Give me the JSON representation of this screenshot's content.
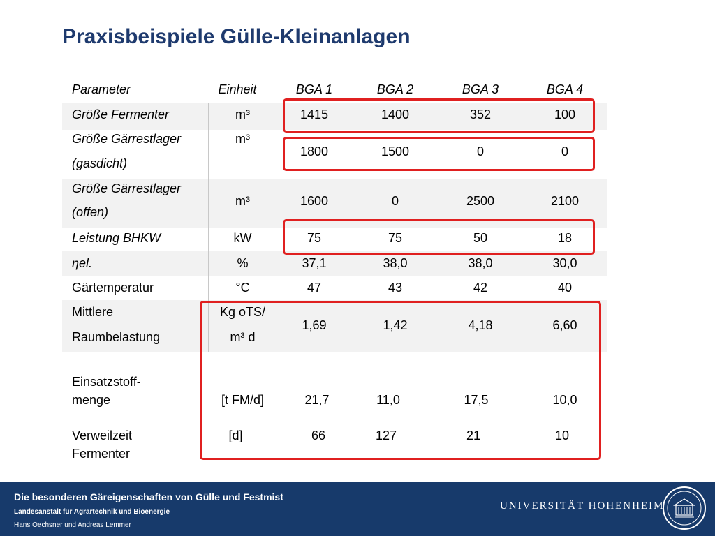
{
  "title": "Praxisbeispiele Gülle-Kleinanlagen",
  "header": {
    "parameter": "Parameter",
    "unit": "Einheit",
    "bga1": "BGA 1",
    "bga2": "BGA 2",
    "bga3": "BGA 3",
    "bga4": "BGA 4"
  },
  "rows": {
    "fermenter": {
      "label": "Größe Fermenter",
      "unit": "m³",
      "v1": "1415",
      "v2": "1400",
      "v3": "352",
      "v4": "100"
    },
    "gaerrest_gas": {
      "label_line1": "Größe   Gärrestlager",
      "label_line2": "(gasdicht)",
      "unit": "m³",
      "v1": "1800",
      "v2": "1500",
      "v3": "0",
      "v4": "0"
    },
    "gaerrest_offen": {
      "label_line1": "Größe   Gärrestlager",
      "label_line2": "(offen)",
      "unit": "m³",
      "v1": "1600",
      "v2": "0",
      "v3": "2500",
      "v4": "2100"
    },
    "leistung": {
      "label": "Leistung BHKW",
      "unit": "kW",
      "v1": "75",
      "v2": "75",
      "v3": "50",
      "v4": "18"
    },
    "eta": {
      "label": "ηel.",
      "unit": "%",
      "v1": "37,1",
      "v2": "38,0",
      "v3": "38,0",
      "v4": "30,0"
    },
    "temperatur": {
      "label": "Gärtemperatur",
      "unit": "°C",
      "v1": "47",
      "v2": "43",
      "v3": "42",
      "v4": "40"
    },
    "raumbelastung": {
      "label_line1": "Mittlere",
      "label_line2": "Raumbelastung",
      "unit_line1": "Kg oTS/",
      "unit_line2": "m³ d",
      "v1": "1,69",
      "v2": "1,42",
      "v3": "4,18",
      "v4": "6,60"
    },
    "einsatzstoff": {
      "label_line1": "Einsatzstoff-",
      "label_line2": "menge",
      "unit": "[t FM/d]",
      "v1": "21,7",
      "v2": "11,0",
      "v3": "17,5",
      "v4": "10,0"
    },
    "verweilzeit": {
      "label_line1": "Verweilzeit",
      "label_line2": "Fermenter",
      "unit": "[d]",
      "v1": "66",
      "v2": "127",
      "v3": "21",
      "v4": "10"
    }
  },
  "footer": {
    "line1": "Die besonderen Gäreigenschaften von Gülle und Festmist",
    "line2": "Landesanstalt für Agrartechnik und Bioenergie",
    "line3": "Hans Oechsner  und  Andreas Lemmer",
    "university": "UNIVERSITÄT HOHENHEIM",
    "seal_icon": "university-seal-icon"
  },
  "colors": {
    "title": "#1e3a6e",
    "footer_bg": "#173a6b",
    "highlight": "#e02020",
    "band": "#f2f2f2"
  }
}
